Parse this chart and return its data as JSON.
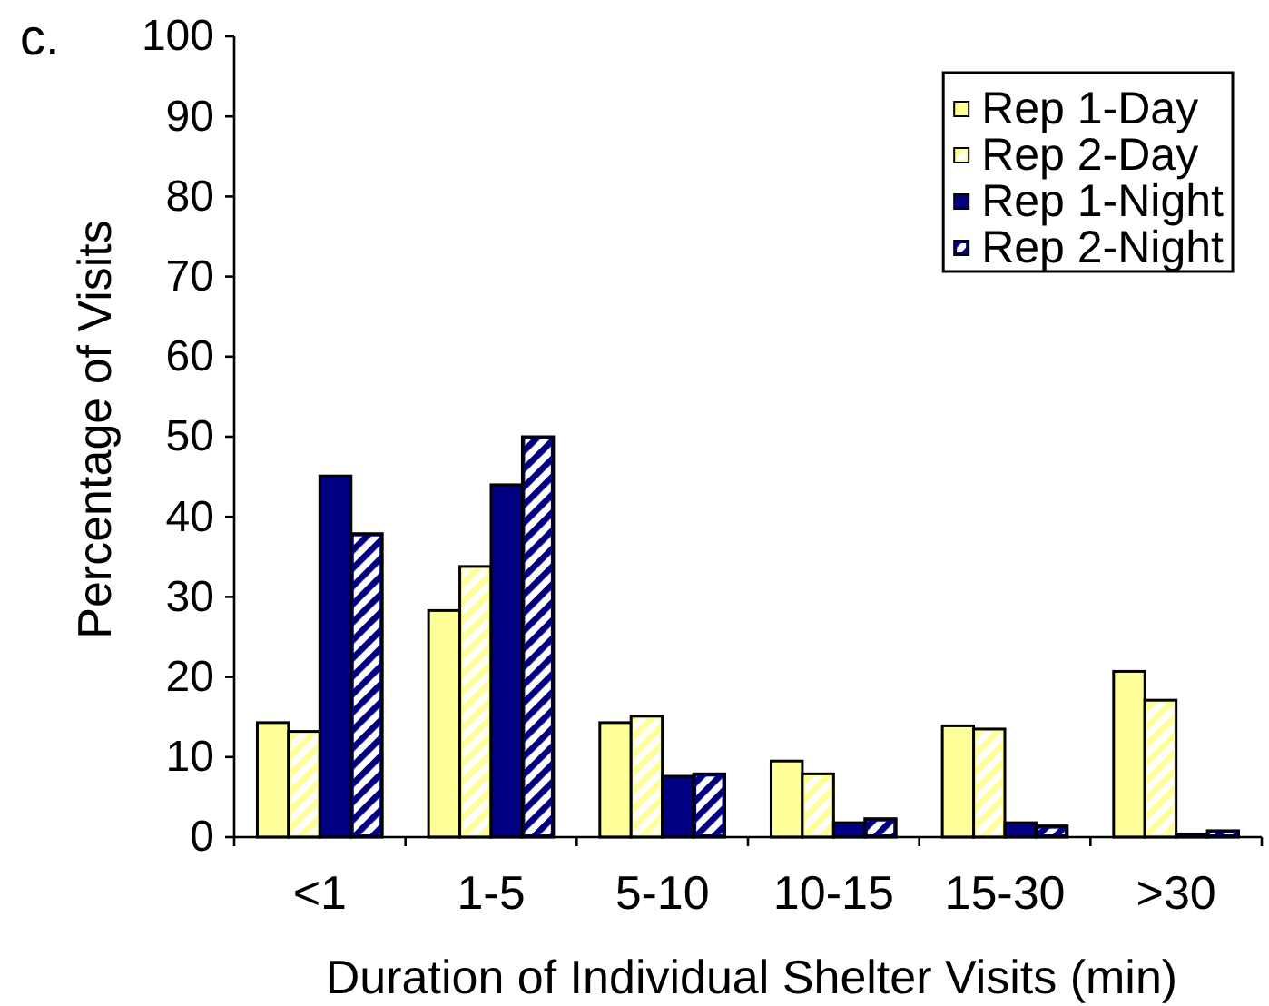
{
  "chart_data": {
    "type": "bar",
    "title": "c.",
    "xlabel": "Duration of Individual Shelter Visits (min)",
    "ylabel": "Percentage of Visits",
    "categories": [
      "<1",
      "1-5",
      "5-10",
      "10-15",
      "15-30",
      ">30"
    ],
    "series": [
      {
        "name": "Rep 1-Day",
        "color": "#ffff99",
        "values": [
          14.3,
          28.3,
          14.3,
          9.5,
          13.9,
          20.7
        ]
      },
      {
        "name": "Rep 2-Day",
        "color": "#ffff99",
        "values": [
          13.2,
          33.8,
          15.1,
          7.9,
          13.5,
          17.1
        ]
      },
      {
        "name": "Rep 1-Night",
        "color": "#000080",
        "values": [
          45.1,
          44.0,
          7.6,
          1.8,
          1.8,
          0.4
        ]
      },
      {
        "name": "Rep 2-Night",
        "color": "#000080",
        "values": [
          37.9,
          50.0,
          7.9,
          2.3,
          1.4,
          0.8
        ]
      }
    ],
    "ylim": [
      0,
      100
    ],
    "yticks": [
      0,
      10,
      20,
      30,
      40,
      50,
      60,
      70,
      80,
      90,
      100
    ],
    "legend": "top right"
  }
}
